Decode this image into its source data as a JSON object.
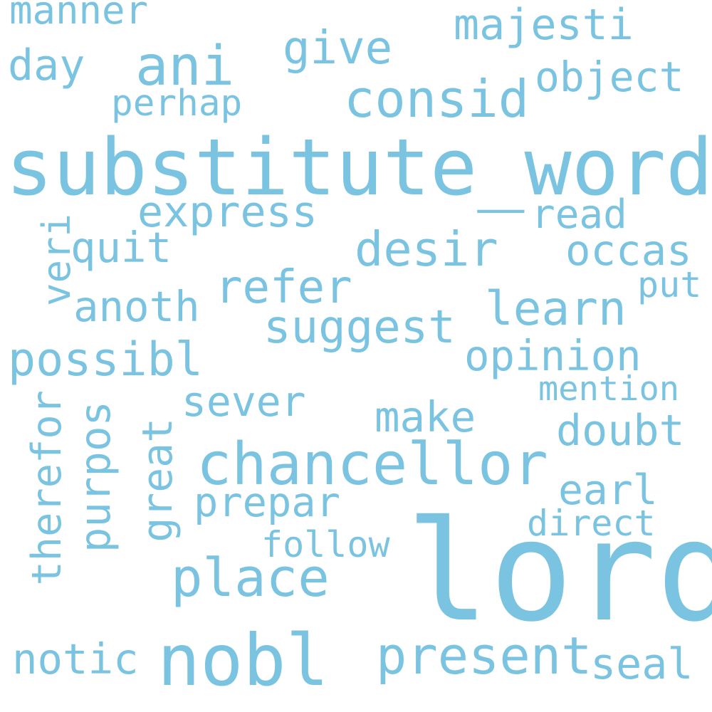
{
  "color": "#7ac4e2",
  "words": [
    "substitute_word",
    "lord",
    "chancellor",
    "nobl",
    "present",
    "place",
    "consid",
    "desir",
    "ani",
    "express",
    "suggest",
    "refer",
    "possibl",
    "opinion",
    "learn",
    "occas",
    "anoth",
    "quit",
    "give",
    "majesti",
    "object",
    "read",
    "make",
    "sever",
    "doubt",
    "earl",
    "prepar",
    "follow",
    "direct",
    "mention",
    "put",
    "perhap",
    "day",
    "manner",
    "notic",
    "seal",
    "therefor",
    "purpos",
    "great",
    "veri"
  ]
}
